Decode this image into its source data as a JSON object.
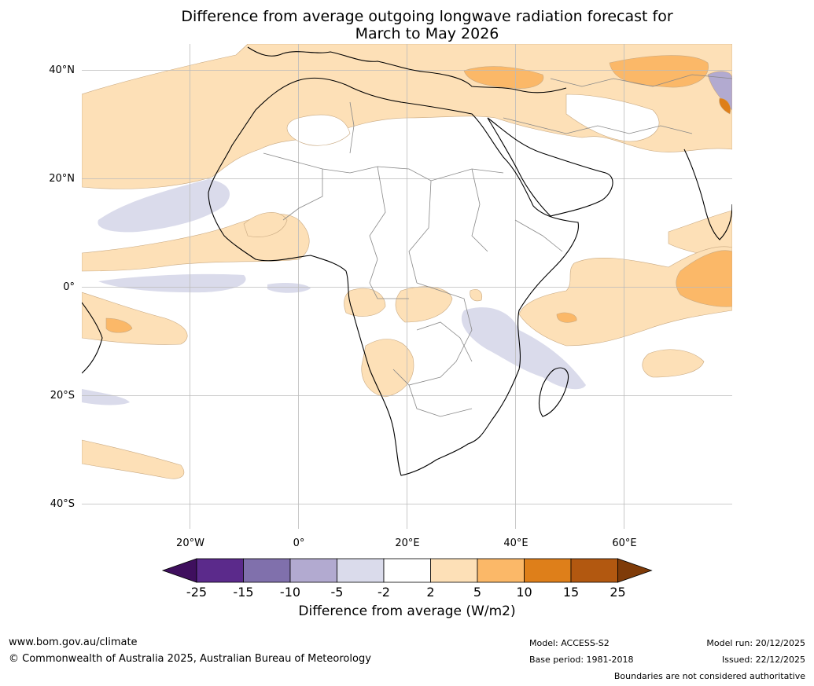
{
  "title": {
    "line1": "Difference from average outgoing longwave radiation forecast for",
    "line2": "March to May 2026"
  },
  "map": {
    "lat_labels": [
      "40°N",
      "20°N",
      "0°",
      "20°S",
      "40°S"
    ],
    "lon_labels": [
      "20°W",
      "0°",
      "20°E",
      "40°E",
      "60°E"
    ]
  },
  "colorbar": {
    "ticks": [
      "-25",
      "-15",
      "-10",
      "-5",
      "-2",
      "2",
      "5",
      "10",
      "15",
      "25"
    ],
    "colors": [
      "#3f0f5e",
      "#5b2a8b",
      "#8070ac",
      "#b2aad0",
      "#dadbeb",
      "#ffffff",
      "#fde0b7",
      "#fbb868",
      "#de7f1a",
      "#b25810",
      "#7f3b08"
    ],
    "label": "Difference from average (W/m2)"
  },
  "footer": {
    "website": "www.bom.gov.au/climate",
    "copyright": "© Commonwealth of Australia 2025, Australian Bureau of Meteorology",
    "model": "Model: ACCESS-S2",
    "base_period": "Base period: 1981-2018",
    "model_run": "Model run: 20/12/2025",
    "issued": "Issued: 22/12/2025",
    "disclaimer": "Boundaries are not considered authoritative"
  }
}
